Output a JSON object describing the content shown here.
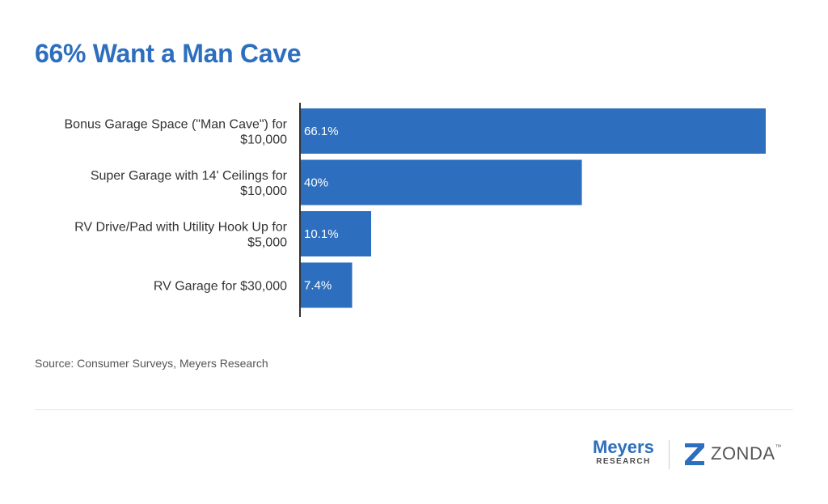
{
  "chart_data": {
    "type": "bar",
    "orientation": "horizontal",
    "title": "66% Want a Man Cave",
    "categories": [
      [
        "Bonus Garage Space (\"Man Cave\") for",
        "$10,000"
      ],
      [
        "Super Garage with 14' Ceilings for",
        "$10,000"
      ],
      [
        "RV Drive/Pad with Utility Hook Up for",
        "$5,000"
      ],
      [
        "RV Garage for $30,000"
      ]
    ],
    "values": [
      66.1,
      40,
      10.1,
      7.4
    ],
    "value_labels": [
      "66.1%",
      "40%",
      "10.1%",
      "7.4%"
    ],
    "xlim": [
      0,
      66.1
    ],
    "grid": false,
    "legend": "none",
    "bar_color": "#2d6fbe",
    "axis_color": "#333333"
  },
  "source": "Source: Consumer Surveys, Meyers Research",
  "logos": {
    "meyers_name": "Meyers",
    "meyers_sub": "RESEARCH",
    "zonda_word": "ZONDA",
    "zonda_tm": "™",
    "meyers_color": "#2d6fbe",
    "zonda_color": "#2d6fbe"
  }
}
